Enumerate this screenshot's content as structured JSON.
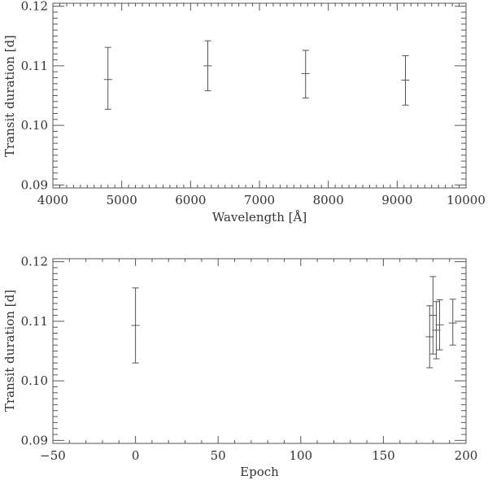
{
  "chart_data": [
    {
      "type": "scatter",
      "title": "",
      "xlabel": "Wavelength [Å]",
      "ylabel": "Transit duration [d]",
      "xlim": [
        4000,
        10000
      ],
      "ylim": [
        0.0895,
        0.1205
      ],
      "xticks": [
        4000,
        5000,
        6000,
        7000,
        8000,
        9000,
        10000
      ],
      "xtick_labels": [
        "4000",
        "5000",
        "6000",
        "7000",
        "8000",
        "9000",
        "10000"
      ],
      "x_minor_step": 100,
      "yticks": [
        0.09,
        0.1,
        0.11,
        0.12
      ],
      "ytick_labels": [
        "0.09",
        "0.10",
        "0.11",
        "0.12"
      ],
      "y_minor_step": 0.001,
      "grid": false,
      "points": [
        {
          "x": 4800,
          "y": 0.1077,
          "ylo": 0.1027,
          "yhi": 0.1131
        },
        {
          "x": 6250,
          "y": 0.11,
          "ylo": 0.1058,
          "yhi": 0.1142
        },
        {
          "x": 7670,
          "y": 0.1087,
          "ylo": 0.1046,
          "yhi": 0.1126
        },
        {
          "x": 9120,
          "y": 0.1076,
          "ylo": 0.1034,
          "yhi": 0.1117
        }
      ]
    },
    {
      "type": "scatter",
      "title": "",
      "xlabel": "Epoch",
      "ylabel": "Transit duration [d]",
      "xlim": [
        -50,
        200
      ],
      "ylim": [
        0.0895,
        0.1205
      ],
      "xticks": [
        -50,
        0,
        50,
        100,
        150,
        200
      ],
      "xtick_labels": [
        "−50",
        "0",
        "50",
        "100",
        "150",
        "200"
      ],
      "x_minor_step": 10,
      "yticks": [
        0.09,
        0.1,
        0.11,
        0.12
      ],
      "ytick_labels": [
        "0.09",
        "0.10",
        "0.11",
        "0.12"
      ],
      "y_minor_step": 0.001,
      "grid": false,
      "points": [
        {
          "x": 0,
          "y": 0.1093,
          "ylo": 0.103,
          "yhi": 0.1156
        },
        {
          "x": 178,
          "y": 0.1074,
          "ylo": 0.1022,
          "yhi": 0.1126
        },
        {
          "x": 180,
          "y": 0.111,
          "ylo": 0.1045,
          "yhi": 0.1175
        },
        {
          "x": 182,
          "y": 0.1085,
          "ylo": 0.1037,
          "yhi": 0.1133
        },
        {
          "x": 184,
          "y": 0.1094,
          "ylo": 0.1052,
          "yhi": 0.1136
        },
        {
          "x": 192,
          "y": 0.1097,
          "ylo": 0.106,
          "yhi": 0.1137
        }
      ]
    }
  ]
}
